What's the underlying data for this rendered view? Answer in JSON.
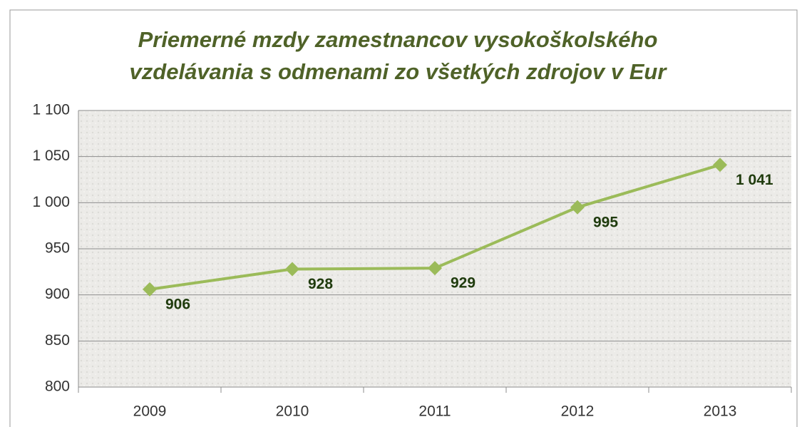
{
  "chart_data": {
    "type": "line",
    "title": [
      "Priemerné mzdy zamestnancov vysokoškolského",
      "vzdelávania s odmenami zo všetkých zdrojov v Eur"
    ],
    "categories": [
      "2009",
      "2010",
      "2011",
      "2012",
      "2013"
    ],
    "series": [
      {
        "name": "Priemerné mzdy",
        "color": "#9bbb59",
        "values": [
          906,
          928,
          929,
          995,
          1041
        ],
        "value_labels": [
          "906",
          "928",
          "929",
          "995",
          "1 041"
        ]
      }
    ],
    "ylim": [
      800,
      1100
    ],
    "yticks": [
      800,
      850,
      900,
      950,
      {
        "value": 1000,
        "label": "1 000"
      },
      {
        "value": 1050,
        "label": "1 050"
      },
      {
        "value": 1100,
        "label": "1 100"
      }
    ],
    "grid": true
  }
}
